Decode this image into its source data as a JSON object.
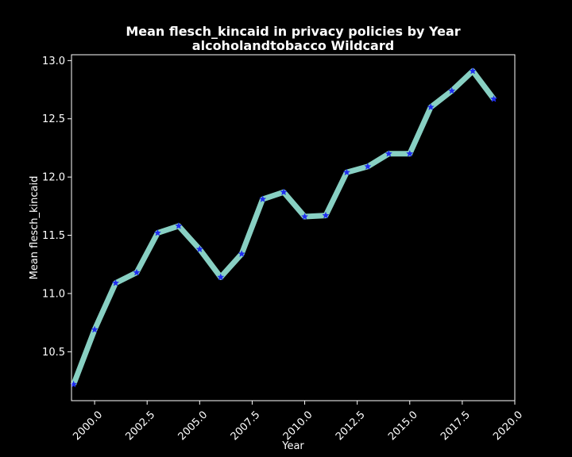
{
  "chart_data": {
    "type": "line",
    "title": "Mean flesch_kincaid in privacy policies by Year",
    "subtitle": "alcoholandtobacco Wildcard",
    "xlabel": "Year",
    "ylabel": "Mean flesch_kincaid",
    "xlim": [
      1998.9,
      2020.0
    ],
    "ylim": [
      10.08,
      13.05
    ],
    "x_ticks": [
      2000.0,
      2002.5,
      2005.0,
      2007.5,
      2010.0,
      2012.5,
      2015.0,
      2017.5,
      2020.0
    ],
    "x_tick_labels": [
      "2000.0",
      "2002.5",
      "2005.0",
      "2007.5",
      "2010.0",
      "2012.5",
      "2015.0",
      "2017.5",
      "2020.0"
    ],
    "y_ticks": [
      10.5,
      11.0,
      11.5,
      12.0,
      12.5,
      13.0
    ],
    "y_tick_labels": [
      "10.5",
      "11.0",
      "11.5",
      "12.0",
      "12.5",
      "13.0"
    ],
    "grid": false,
    "series": [
      {
        "x": [
          1999,
          2000,
          2001,
          2002,
          2003,
          2004,
          2005,
          2006,
          2007,
          2008,
          2009,
          2010,
          2011,
          2012,
          2013,
          2014,
          2015,
          2016,
          2017,
          2018,
          2019
        ],
        "values": [
          10.22,
          10.69,
          11.09,
          11.18,
          11.52,
          11.58,
          11.38,
          11.14,
          11.34,
          11.81,
          11.87,
          11.66,
          11.67,
          12.04,
          12.09,
          12.2,
          12.2,
          12.6,
          12.74,
          12.91,
          12.67
        ],
        "line_color": "#88d0c3",
        "marker_color": "#1f2cf0",
        "marker": "star"
      }
    ],
    "colors": {
      "background": "#000000",
      "axes": "#ffffff",
      "text": "#ffffff"
    }
  }
}
